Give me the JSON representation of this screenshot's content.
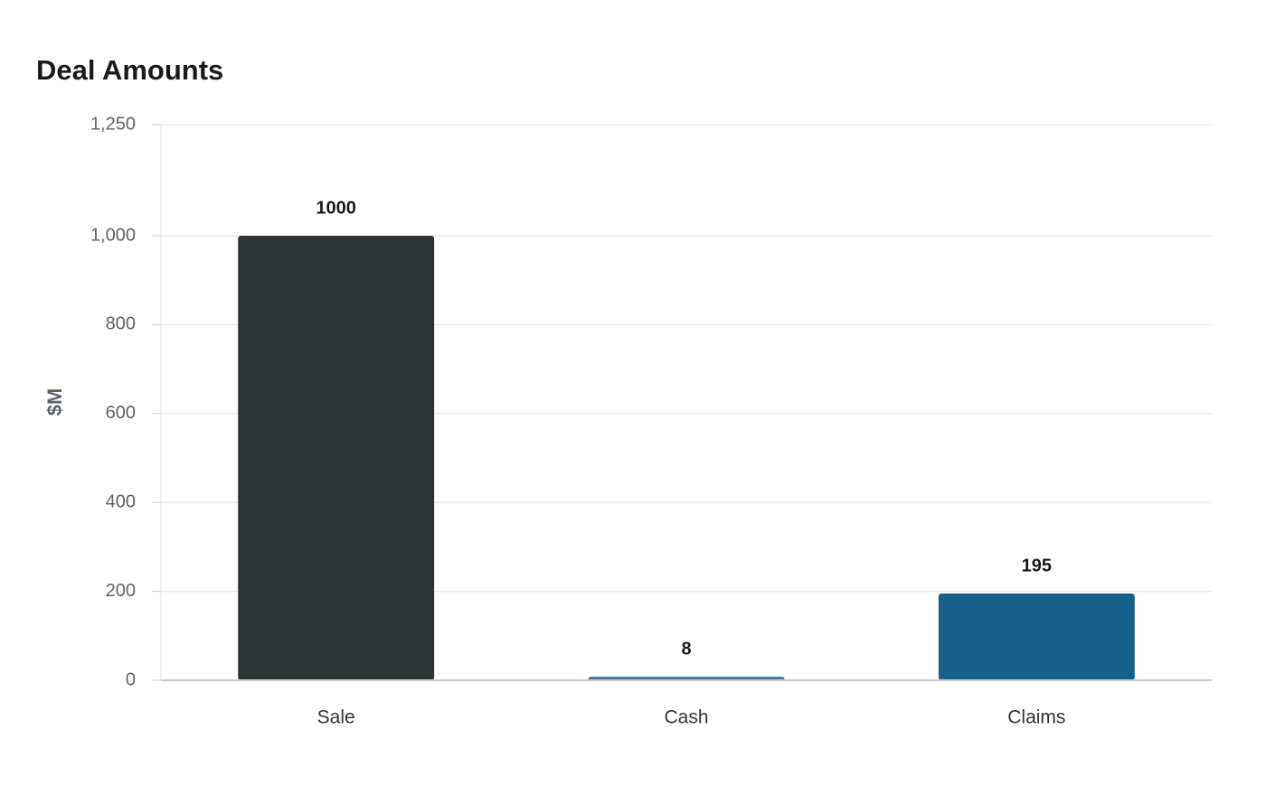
{
  "chart_data": {
    "type": "bar",
    "title": "Deal Amounts",
    "y_label": "$M",
    "categories": [
      "Sale",
      "Cash",
      "Claims"
    ],
    "values": [
      1000,
      8,
      195
    ],
    "colors": [
      "#2d3436",
      "#4a6fa5",
      "#16618a"
    ],
    "ylim": [
      0,
      1250
    ],
    "yticks": [
      0,
      200,
      400,
      600,
      800,
      {
        "value": 1000,
        "label": "1,000"
      },
      {
        "value": 1250,
        "label": "1,250"
      }
    ],
    "grid": true
  }
}
